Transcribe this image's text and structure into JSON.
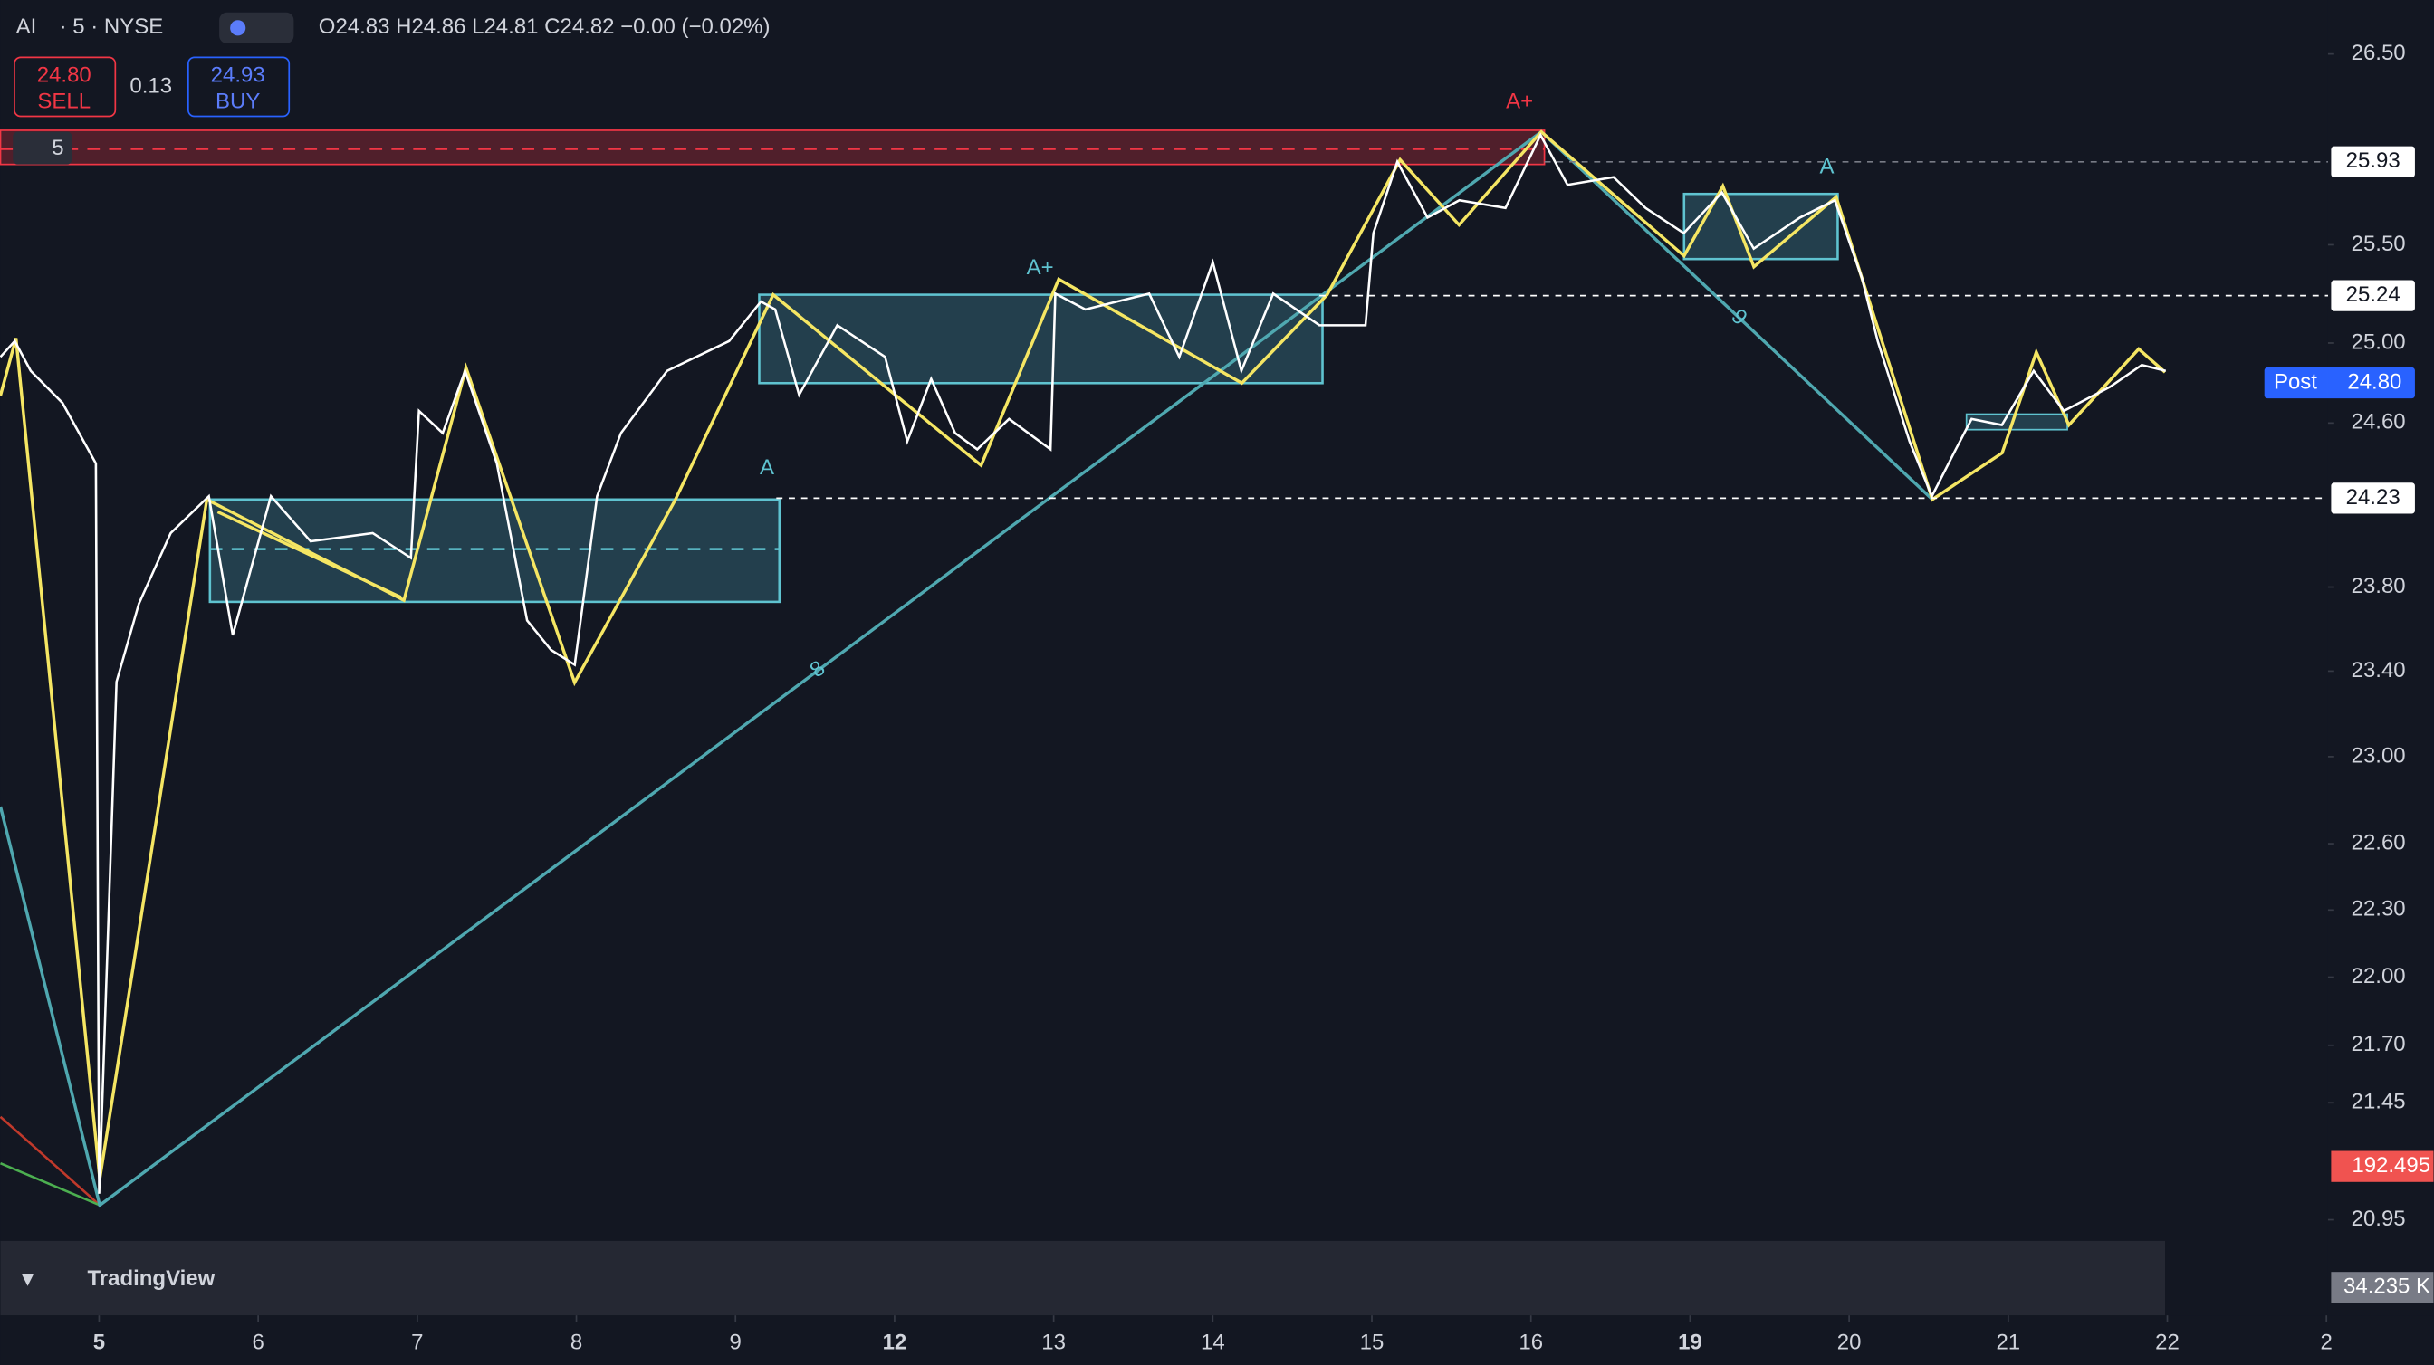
{
  "header": {
    "symbol": "AI",
    "interval": "· 5 · NYSE",
    "ohlc": "O24.83 H24.86 L24.81 C24.82 −0.00 (−0.02%)"
  },
  "order": {
    "sell_price": "24.80",
    "sell_label": "SELL",
    "spread": "0.13",
    "buy_price": "24.93",
    "buy_label": "BUY"
  },
  "layer_count": "5",
  "logo": "TradingView",
  "annotations": {
    "a_plus_red": "A+",
    "a_plus_blue": "A+",
    "a_left": "A",
    "a_right": "A",
    "wave_8": "8",
    "wave_9": "9"
  },
  "chart_data": {
    "type": "line",
    "log_scale": true,
    "xlim": [
      -0.62,
      14.01
    ],
    "ylim": [
      20.55,
      26.79
    ],
    "xticks": [
      {
        "value": 0,
        "label": "5"
      },
      {
        "value": 1,
        "label": "6"
      },
      {
        "value": 2,
        "label": "7"
      },
      {
        "value": 3,
        "label": "8"
      },
      {
        "value": 4,
        "label": "9"
      },
      {
        "value": 5,
        "label": "12"
      },
      {
        "value": 6,
        "label": "13"
      },
      {
        "value": 7,
        "label": "14"
      },
      {
        "value": 8,
        "label": "15"
      },
      {
        "value": 9,
        "label": "16"
      },
      {
        "value": 10,
        "label": "19"
      },
      {
        "value": 11,
        "label": "20"
      },
      {
        "value": 12,
        "label": "21"
      },
      {
        "value": 13,
        "label": "22"
      },
      {
        "value": 14,
        "label": "2"
      }
    ],
    "yticks": [
      {
        "value": 26.5,
        "label": "26.50"
      },
      {
        "value": 25.5,
        "label": "25.50"
      },
      {
        "value": 25,
        "label": "25.00"
      },
      {
        "value": 24.6,
        "label": "24.60"
      },
      {
        "value": 23.8,
        "label": "23.80"
      },
      {
        "value": 23.4,
        "label": "23.40"
      },
      {
        "value": 23,
        "label": "23.00"
      },
      {
        "value": 22.6,
        "label": "22.60"
      },
      {
        "value": 22.3,
        "label": "22.30"
      },
      {
        "value": 22,
        "label": "22.00"
      },
      {
        "value": 21.7,
        "label": "21.70"
      },
      21.45,
      20.95
    ],
    "price_lines": [
      25.93,
      25.24,
      24.23
    ],
    "post": {
      "label": "Post",
      "value": 24.8,
      "value_label": "24.80"
    },
    "volume_tags": [
      "192.495",
      "34.235 K"
    ],
    "x": [
      -0.62,
      -0.53,
      -0.43,
      -0.23,
      -0.02,
      0,
      0.11,
      0.25,
      0.45,
      0.69,
      0.84,
      1.08,
      1.33,
      1.72,
      1.96,
      2.01,
      2.16,
      2.3,
      2.5,
      2.69,
      2.84,
      2.99,
      3.13,
      3.28,
      3.57,
      3.96,
      4.16,
      4.25,
      4.4,
      4.64,
      4.94,
      5.08,
      5.23,
      5.38,
      5.52,
      5.72,
      5.98,
      6.01,
      6.2,
      6.6,
      6.79,
      7,
      7.18,
      7.38,
      7.67,
      7.96,
      8.01,
      8.16,
      8.35,
      8.55,
      8.84,
      9.06,
      9.23,
      9.52,
      9.72,
      9.96,
      10.2,
      10.4,
      10.69,
      10.91,
      11.08,
      11.18,
      11.38,
      11.52,
      11.67,
      11.77,
      11.96,
      12.16,
      12.35,
      12.64,
      12.84,
      12.99
    ],
    "series": [
      {
        "name": "AI",
        "color": "#ffffff",
        "values": [
          24.93,
          25.01,
          24.86,
          24.7,
          24.4,
          21.06,
          23.35,
          23.72,
          24.06,
          24.24,
          23.57,
          24.24,
          24.02,
          24.06,
          23.94,
          24.66,
          24.55,
          24.86,
          24.4,
          23.64,
          23.5,
          23.43,
          24.24,
          24.55,
          24.86,
          25.01,
          25.21,
          25.17,
          24.74,
          25.09,
          24.93,
          24.51,
          24.82,
          24.55,
          24.47,
          24.62,
          24.47,
          25.25,
          25.17,
          25.25,
          24.93,
          25.41,
          24.86,
          25.25,
          25.09,
          25.09,
          25.56,
          25.93,
          25.64,
          25.73,
          25.69,
          26.07,
          25.81,
          25.85,
          25.69,
          25.56,
          25.77,
          25.48,
          25.64,
          25.73,
          25.33,
          25.01,
          24.51,
          24.24,
          24.47,
          24.62,
          24.59,
          24.86,
          24.66,
          24.78,
          24.89,
          24.86
        ]
      }
    ]
  }
}
